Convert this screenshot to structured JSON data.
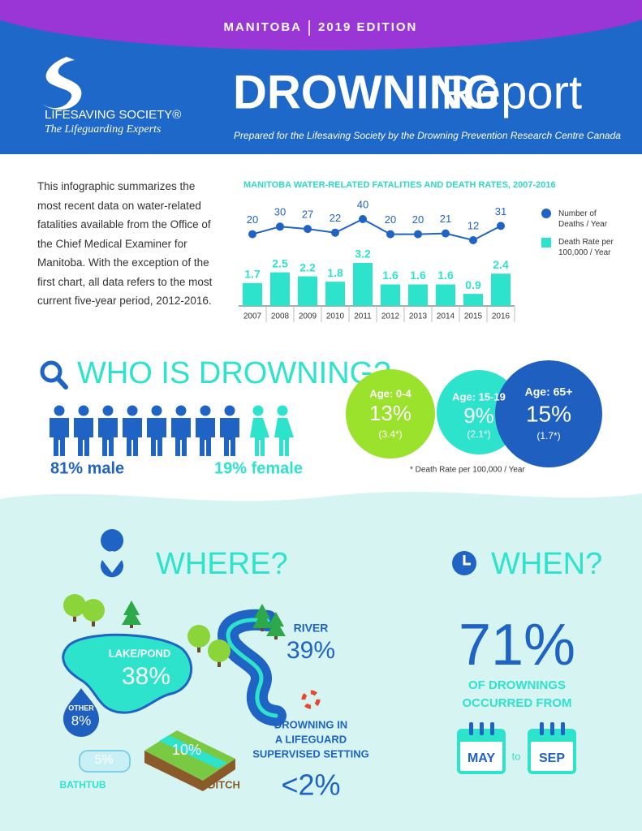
{
  "header": {
    "region": "MANITOBA",
    "edition": "2019 EDITION",
    "logo_name": "LIFESAVING SOCIETY®",
    "logo_tagline": "The Lifeguarding Experts",
    "title": "DROWNING",
    "title_suffix": "Report",
    "subtitle": "Prepared for the Lifesaving Society by the Drowning Prevention Research Centre Canada"
  },
  "intro": "This infographic summarizes the most recent data on water-related fatalities available from the Office of the Chief Medical Examiner for Manitoba. With the exception of the first chart, all data refers to the most current five-year period, 2012-2016.",
  "chart_data": {
    "type": "combo",
    "title": "MANITOBA WATER-RELATED FATALITIES AND DEATH RATES, 2007-2016",
    "categories": [
      "2007",
      "2008",
      "2009",
      "2010",
      "2011",
      "2012",
      "2013",
      "2014",
      "2015",
      "2016"
    ],
    "series": [
      {
        "name": "Number of Deaths / Year",
        "type": "line",
        "color": "#1f63c4",
        "values": [
          20,
          30,
          27,
          22,
          40,
          20,
          20,
          21,
          12,
          31
        ]
      },
      {
        "name": "Death Rate per 100,000 / Year",
        "type": "bar",
        "color": "#2ee3cb",
        "values": [
          1.7,
          2.5,
          2.2,
          1.8,
          3.2,
          1.6,
          1.6,
          1.6,
          0.9,
          2.4
        ]
      }
    ]
  },
  "who": {
    "title": "WHO IS DROWNING?",
    "male": "81% male",
    "female": "19% female",
    "age_groups": [
      {
        "label": "Age: 0-4",
        "percent": "13%",
        "rate": "(3.4*)"
      },
      {
        "label": "Age: 15-19",
        "percent": "9%",
        "rate": "(2.1*)"
      },
      {
        "label": "Age: 65+",
        "percent": "15%",
        "rate": "(1.7*)"
      }
    ],
    "footnote": "* Death Rate per 100,000 / Year"
  },
  "where": {
    "title": "WHERE?",
    "locations": [
      {
        "label": "LAKE/POND",
        "percent": "38%"
      },
      {
        "label": "RIVER",
        "percent": "39%"
      },
      {
        "label": "OTHER",
        "percent": "8%"
      },
      {
        "label": "BATHTUB",
        "percent": "5%"
      },
      {
        "label": "DITCH",
        "percent": "10%"
      }
    ],
    "supervised": {
      "label_lines": [
        "DROWNING IN",
        "A LIFEGUARD",
        "SUPERVISED SETTING"
      ],
      "percent": "<2%"
    }
  },
  "when": {
    "title": "WHEN?",
    "percent": "71%",
    "caption_lines": [
      "OF DROWNINGS",
      "OCCURRED FROM"
    ],
    "from": "MAY",
    "connector": "to",
    "to": "SEP"
  }
}
